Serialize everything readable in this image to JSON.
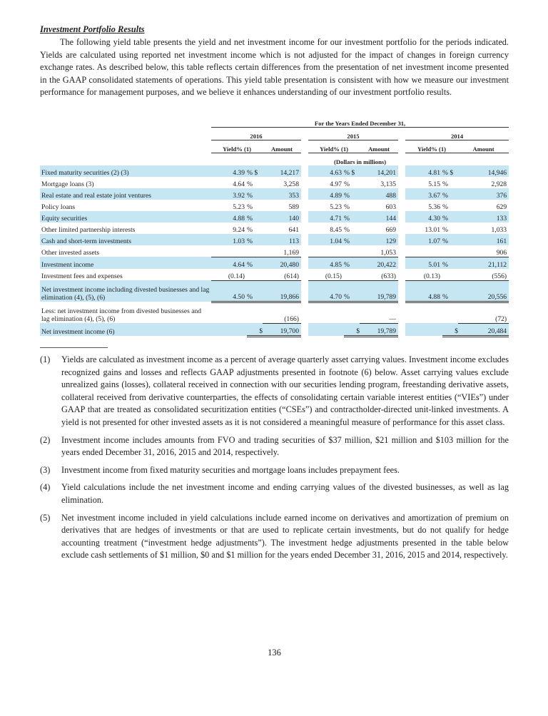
{
  "heading": "Investment Portfolio Results",
  "intro": "The following yield table presents the yield and net investment income for our investment portfolio for the periods indicated. Yields are calculated using reported net investment income which is not adjusted for the impact of changes in foreign currency exchange rates. As described below, this table reflects certain differences from the presentation of net investment income presented in the GAAP consolidated statements of operations. This yield table presentation is consistent with how we measure our investment performance for management purposes, and we believe it enhances understanding of our investment portfolio results.",
  "table": {
    "period_header": "For the Years Ended December 31,",
    "years": [
      "2016",
      "2015",
      "2014"
    ],
    "yield_header": "Yield% (1)",
    "amount_header": "Amount",
    "units": "(Dollars in millions)",
    "rows": [
      {
        "label": "Fixed maturity securities (2) (3)",
        "v": [
          "4.39",
          "14,217",
          "4.63",
          "14,201",
          "4.81",
          "14,946"
        ],
        "dollar": true
      },
      {
        "label": "Mortgage loans (3)",
        "v": [
          "4.64",
          "3,258",
          "4.97",
          "3,135",
          "5.15",
          "2,928"
        ]
      },
      {
        "label": "Real estate and real estate joint ventures",
        "v": [
          "3.92",
          "353",
          "4.89",
          "488",
          "3.67",
          "376"
        ]
      },
      {
        "label": "Policy loans",
        "v": [
          "5.23",
          "589",
          "5.23",
          "603",
          "5.36",
          "629"
        ]
      },
      {
        "label": "Equity securities",
        "v": [
          "4.88",
          "140",
          "4.71",
          "144",
          "4.30",
          "133"
        ]
      },
      {
        "label": "Other limited partnership interests",
        "v": [
          "9.24",
          "641",
          "8.45",
          "669",
          "13.01",
          "1,033"
        ]
      },
      {
        "label": "Cash and short-term investments",
        "v": [
          "1.03",
          "113",
          "1.04",
          "129",
          "1.07",
          "161"
        ]
      },
      {
        "label": "Other invested assets",
        "v": [
          "",
          "1,169",
          "",
          "1,053",
          "",
          "906"
        ]
      },
      {
        "label": "Investment income",
        "v": [
          "4.64",
          "20,480",
          "4.85",
          "20,422",
          "5.01",
          "21,112"
        ]
      },
      {
        "label": "Investment fees and expenses",
        "v": [
          "(0.14)",
          "(614)",
          "(0.15)",
          "(633)",
          "(0.13)",
          "(556)"
        ]
      },
      {
        "label": "Net investment income including divested businesses and lag elimination (4), (5), (6)",
        "v": [
          "4.50",
          "19,866",
          "4.70",
          "19,789",
          "4.88",
          "20,556"
        ]
      },
      {
        "label": "Less: net investment income from divested businesses and lag elimination (4), (5), (6)",
        "v": [
          "",
          "(166)",
          "",
          "—",
          "",
          "(72)"
        ]
      },
      {
        "label": "Net investment income (6)",
        "v": [
          "",
          "19,700",
          "",
          "19,789",
          "",
          "20,484"
        ]
      }
    ]
  },
  "footnotes": [
    {
      "n": "(1)",
      "t": "Yields are calculated as investment income as a percent of average quarterly asset carrying values. Investment income excludes recognized gains and losses and reflects GAAP adjustments presented in footnote (6) below. Asset carrying values exclude unrealized gains (losses), collateral received in connection with our securities lending program, freestanding derivative assets, collateral received from derivative counterparties, the effects of consolidating certain variable interest entities (“VIEs”) under GAAP that are treated as consolidated securitization entities (“CSEs”) and contractholder-directed unit-linked investments. A yield is not presented for other invested assets as it is not considered a meaningful measure of performance for this asset class."
    },
    {
      "n": "(2)",
      "t": "Investment income includes amounts from FVO and trading securities of $37 million, $21 million and $103 million for the years ended December 31, 2016, 2015 and 2014, respectively."
    },
    {
      "n": "(3)",
      "t": "Investment income from fixed maturity securities and mortgage loans includes prepayment fees."
    },
    {
      "n": "(4)",
      "t": "Yield calculations include the net investment income and ending carrying values of the divested businesses, as well as lag elimination."
    },
    {
      "n": "(5)",
      "t": "Net investment income included in yield calculations include earned income on derivatives and amortization of premium on derivatives that are hedges of investments or that are used to replicate certain investments, but do not qualify for hedge accounting treatment (“investment hedge adjustments”). The investment hedge adjustments presented in the table below exclude cash settlements of $1 million, $0 and $1 million for the years ended December 31, 2016, 2015 and 2014, respectively."
    }
  ],
  "page_number": "136",
  "colors": {
    "row_shade": "#c6e6f4"
  }
}
